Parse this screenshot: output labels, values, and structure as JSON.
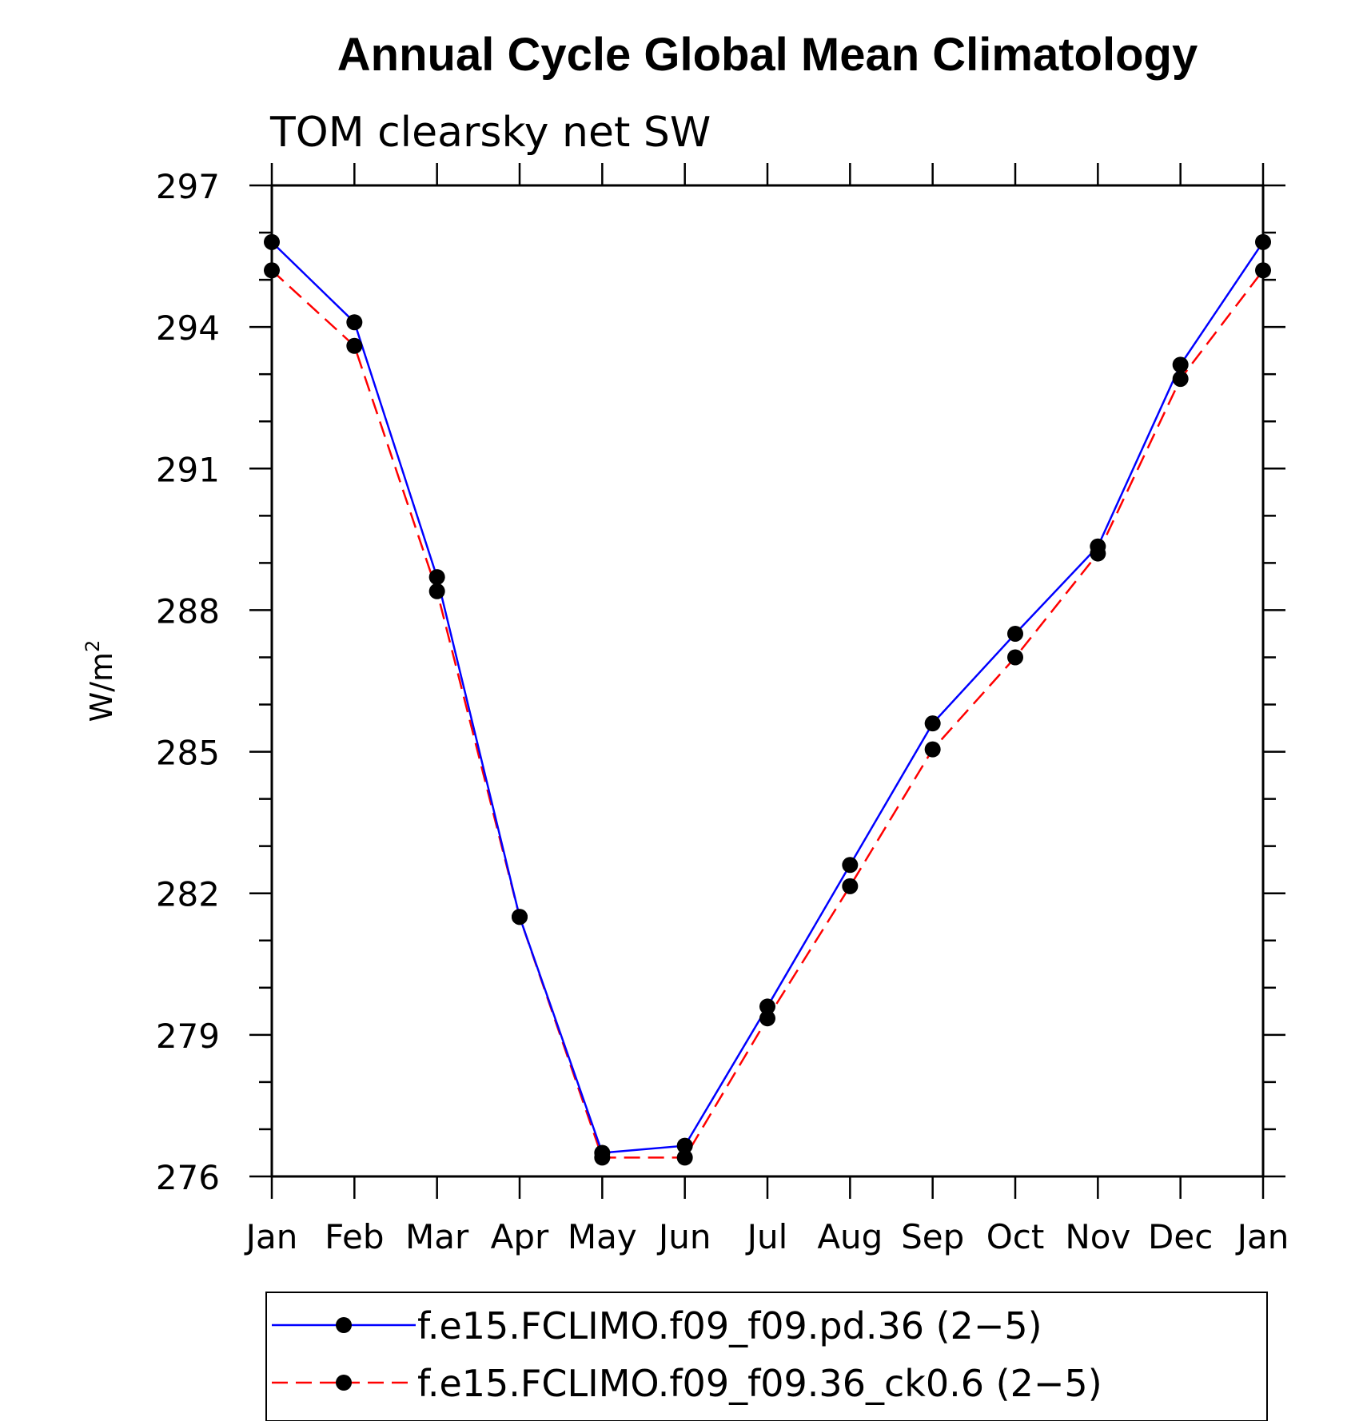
{
  "chart_data": {
    "type": "line",
    "title": "Annual Cycle Global Mean Climatology",
    "subtitle": "TOM clearsky net SW",
    "ylabel": "W/m",
    "ylabel_superscript": "2",
    "xlabel": "",
    "categories": [
      "Jan",
      "Feb",
      "Mar",
      "Apr",
      "May",
      "Jun",
      "Jul",
      "Aug",
      "Sep",
      "Oct",
      "Nov",
      "Dec",
      "Jan"
    ],
    "ylim": [
      276,
      297
    ],
    "yticks": [
      276,
      279,
      282,
      285,
      288,
      291,
      294,
      297
    ],
    "series": [
      {
        "name": "f.e15.FCLIMO.f09_f09.pd.36 (2−5)",
        "color": "#0000ff",
        "dash": "solid",
        "values": [
          295.8,
          294.1,
          288.7,
          281.5,
          276.5,
          276.65,
          279.6,
          282.6,
          285.6,
          287.5,
          289.35,
          293.2,
          295.8
        ]
      },
      {
        "name": "f.e15.FCLIMO.f09_f09.36_ck0.6 (2−5)",
        "color": "#ff0000",
        "dash": "dashed",
        "values": [
          295.2,
          293.6,
          288.4,
          281.5,
          276.4,
          276.4,
          279.35,
          282.15,
          285.05,
          287.0,
          289.2,
          292.9,
          295.2
        ]
      }
    ],
    "legend_position": "bottom-center"
  }
}
